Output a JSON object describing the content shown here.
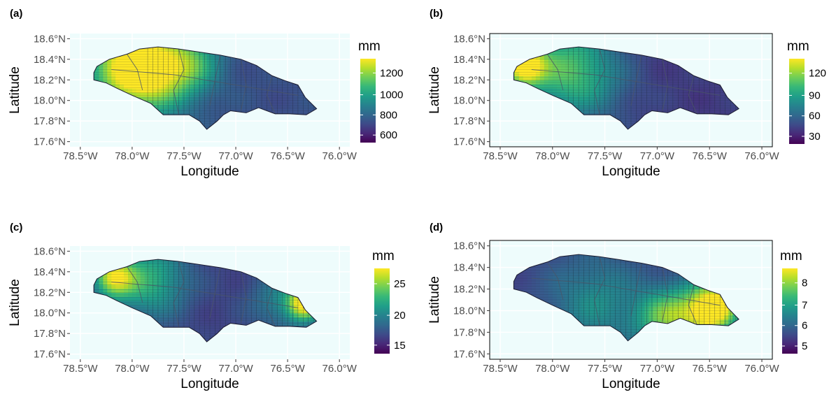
{
  "panels": [
    {
      "tag": "(a)",
      "legend": {
        "title": "mm",
        "ticks": [
          "1200",
          "1000",
          "800",
          "600"
        ]
      },
      "hotspots": [
        {
          "lon": -77.85,
          "lat": 18.27,
          "intensity": 1.0,
          "spread": 0.28
        },
        {
          "lon": -78.15,
          "lat": 18.32,
          "intensity": 0.55,
          "spread": 0.25
        },
        {
          "lon": -77.45,
          "lat": 18.35,
          "intensity": 0.45,
          "spread": 0.2
        }
      ],
      "base": 0.25
    },
    {
      "tag": "(b)",
      "legend": {
        "title": "mm",
        "ticks": [
          "120",
          "90",
          "60",
          "30"
        ]
      },
      "hotspots": [
        {
          "lon": -78.3,
          "lat": 18.32,
          "intensity": 1.0,
          "spread": 0.14
        },
        {
          "lon": -77.95,
          "lat": 18.33,
          "intensity": 0.45,
          "spread": 0.3
        },
        {
          "lon": -77.7,
          "lat": 18.18,
          "intensity": 0.3,
          "spread": 0.3
        }
      ],
      "base": 0.18
    },
    {
      "tag": "(c)",
      "legend": {
        "title": "mm",
        "ticks": [
          "25",
          "20",
          "15"
        ]
      },
      "hotspots": [
        {
          "lon": -78.2,
          "lat": 18.33,
          "intensity": 0.85,
          "spread": 0.14
        },
        {
          "lon": -77.85,
          "lat": 18.3,
          "intensity": 0.55,
          "spread": 0.25
        },
        {
          "lon": -76.35,
          "lat": 18.08,
          "intensity": 1.0,
          "spread": 0.12
        },
        {
          "lon": -76.6,
          "lat": 18.1,
          "intensity": 0.3,
          "spread": 0.2
        }
      ],
      "base": 0.2
    },
    {
      "tag": "(d)",
      "legend": {
        "title": "mm",
        "ticks": [
          "8",
          "7",
          "6",
          "5"
        ]
      },
      "hotspots": [
        {
          "lon": -76.45,
          "lat": 18.02,
          "intensity": 1.0,
          "spread": 0.16
        },
        {
          "lon": -76.7,
          "lat": 17.95,
          "intensity": 0.6,
          "spread": 0.2
        },
        {
          "lon": -77.0,
          "lat": 17.92,
          "intensity": 0.5,
          "spread": 0.18
        },
        {
          "lon": -77.6,
          "lat": 18.05,
          "intensity": 0.35,
          "spread": 0.3
        }
      ],
      "base": 0.22
    }
  ],
  "axes": {
    "xlabel": "Longitude",
    "ylabel": "Latitude",
    "xticks": [
      "78.5°W",
      "78.0°W",
      "77.5°W",
      "77.0°W",
      "76.5°W",
      "76.0°W"
    ],
    "yticks": [
      "18.6°N",
      "18.4°N",
      "18.2°N",
      "18.0°N",
      "17.8°N",
      "17.6°N"
    ],
    "xlim": [
      -78.6,
      -75.9
    ],
    "ylim": [
      17.55,
      18.65
    ]
  },
  "colors": {
    "panel_bg": "#eefcfc",
    "grid": "#ffffff",
    "viridis": [
      "#440154",
      "#482878",
      "#3e4a89",
      "#31688e",
      "#26828e",
      "#1f9e89",
      "#35b779",
      "#6ece58",
      "#b5de2b",
      "#fde725"
    ]
  }
}
